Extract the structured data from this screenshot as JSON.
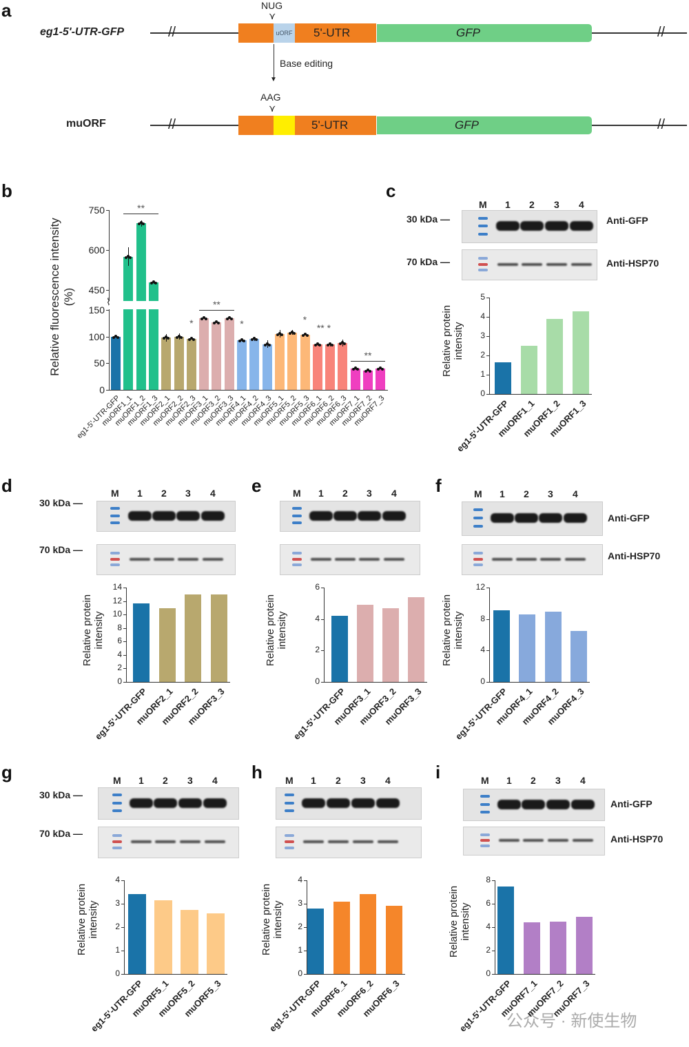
{
  "panels": {
    "a": "a",
    "b": "b",
    "c": "c",
    "d": "d",
    "e": "e",
    "f": "f",
    "g": "g",
    "h": "h",
    "i": "i"
  },
  "diagram": {
    "row1_label": "eg1-5'-UTR-GFP",
    "row2_label": "muORF",
    "codon1": "NUG",
    "codon2": "AAG",
    "uorf": "uORF",
    "utr": "5'-UTR",
    "gfp": "GFP",
    "arrow_label": "Base editing",
    "colors": {
      "utr": "#f07f1f",
      "uorf": "#b9d3ea",
      "mut": "#ffee00",
      "gfp": "#6fcf86"
    }
  },
  "blots": {
    "marker": "M",
    "lanes": [
      "1",
      "2",
      "3",
      "4"
    ],
    "kda30": "30 kDa",
    "kda70": "70 kDa",
    "anti_gfp": "Anti-GFP",
    "anti_hsp": "Anti-HSP70"
  },
  "watermark": "公众号 · 新使生物",
  "chart_data": [
    {
      "id": "b",
      "type": "bar",
      "ylabel": "Relative fluorescence intensity\n(%)",
      "ylim": [
        0,
        750
      ],
      "axis_break": [
        150,
        450
      ],
      "yticks": [
        0,
        50,
        100,
        150,
        450,
        600,
        750
      ],
      "categories": [
        "eg1-5'-UTR-GFP",
        "muORF1_1",
        "muORF1_2",
        "muORF1_3",
        "muORF2_1",
        "muORF2_2",
        "muORF2_3",
        "muORF3_1",
        "muORF3_2",
        "muORF3_3",
        "muORF4_1",
        "muORF4_2",
        "muORF4_3",
        "muORF5_1",
        "muORF5_2",
        "muORF5_3",
        "muORF6_1",
        "muORF6_2",
        "muORF6_3",
        "muORF7_1",
        "muORF7_2",
        "muORF7_3"
      ],
      "values": [
        100,
        575,
        700,
        478,
        98,
        100,
        96,
        135,
        127,
        135,
        93,
        96,
        86,
        105,
        108,
        103,
        85,
        85,
        88,
        40,
        36,
        40
      ],
      "errors": [
        1,
        35,
        12,
        5,
        7,
        6,
        1,
        2,
        2,
        2,
        3,
        4,
        7,
        7,
        5,
        1,
        2,
        3,
        6,
        2,
        1,
        1
      ],
      "colors": [
        "#1a73a8",
        "#21c08b",
        "#21c08b",
        "#21c08b",
        "#b8a86e",
        "#b8a86e",
        "#b8a86e",
        "#dcaeae",
        "#dcaeae",
        "#dcaeae",
        "#87b5ea",
        "#87b5ea",
        "#87b5ea",
        "#fdb878",
        "#fdb878",
        "#fdb878",
        "#f8847a",
        "#f8847a",
        "#f8847a",
        "#ef3fc0",
        "#ef3fc0",
        "#ef3fc0"
      ],
      "annotations": [
        {
          "text": "**",
          "from": 1,
          "to": 3,
          "line": true
        },
        {
          "text": "**",
          "from": 7,
          "to": 9,
          "line": true
        },
        {
          "text": "*",
          "from": 6,
          "to": 6
        },
        {
          "text": "*",
          "from": 10,
          "to": 10
        },
        {
          "text": "*",
          "from": 15,
          "to": 15
        },
        {
          "text": "** *",
          "from": 16,
          "to": 17
        },
        {
          "text": "**",
          "from": 19,
          "to": 21,
          "line": true
        }
      ]
    },
    {
      "id": "c",
      "type": "bar",
      "ylabel": "Relative protein\nintensity",
      "ylim": [
        0,
        5
      ],
      "yticks": [
        0,
        1,
        2,
        3,
        4,
        5
      ],
      "categories": [
        "eg1-5'-UTR-GFP",
        "muORF1_1",
        "muORF1_2",
        "muORF1_3"
      ],
      "values": [
        1.65,
        2.5,
        3.9,
        4.3
      ],
      "colors": [
        "#1a73a8",
        "#a8dca8",
        "#a8dca8",
        "#a8dca8"
      ]
    },
    {
      "id": "d",
      "type": "bar",
      "ylabel": "Relative protein\nintensity",
      "ylim": [
        0,
        14
      ],
      "yticks": [
        0,
        2,
        4,
        6,
        8,
        10,
        12,
        14
      ],
      "categories": [
        "eg1-5'-UTR-GFP",
        "muORF2_1",
        "muORF2_2",
        "muORF3_3"
      ],
      "values": [
        11.7,
        10.9,
        13,
        13
      ],
      "colors": [
        "#1a73a8",
        "#b8a86e",
        "#b8a86e",
        "#b8a86e"
      ]
    },
    {
      "id": "e",
      "type": "bar",
      "ylabel": "Relative protein\nintensity",
      "ylim": [
        0,
        6
      ],
      "yticks": [
        0,
        2,
        4,
        6
      ],
      "categories": [
        "eg1-5'-UTR-GFP",
        "muORF3_1",
        "muORF3_2",
        "muORF3_3"
      ],
      "values": [
        4.2,
        4.9,
        4.7,
        5.4
      ],
      "colors": [
        "#1a73a8",
        "#dcaeae",
        "#dcaeae",
        "#dcaeae"
      ]
    },
    {
      "id": "f",
      "type": "bar",
      "ylabel": "Relative protein\nintensity",
      "ylim": [
        0,
        12
      ],
      "yticks": [
        0,
        4,
        8,
        12
      ],
      "categories": [
        "eg1-5'-UTR-GFP",
        "muORF4_1",
        "muORF4_2",
        "muORF4_3"
      ],
      "values": [
        9.1,
        8.6,
        8.9,
        6.5
      ],
      "colors": [
        "#1a73a8",
        "#87a9dc",
        "#87a9dc",
        "#87a9dc"
      ]
    },
    {
      "id": "g",
      "type": "bar",
      "ylabel": "Relative protein\nintensity",
      "ylim": [
        0,
        4
      ],
      "yticks": [
        0,
        1,
        2,
        3,
        4
      ],
      "categories": [
        "eg1-5'-UTR-GFP",
        "muORF5_1",
        "muORF5_2",
        "muORF5_3"
      ],
      "values": [
        3.4,
        3.15,
        2.75,
        2.6
      ],
      "colors": [
        "#1a73a8",
        "#fdca88",
        "#fdca88",
        "#fdca88"
      ]
    },
    {
      "id": "h",
      "type": "bar",
      "ylabel": "Relative protein\nintensity",
      "ylim": [
        0,
        4
      ],
      "yticks": [
        0,
        1,
        2,
        3,
        4
      ],
      "categories": [
        "eg1-5'-UTR-GFP",
        "muORF6_1",
        "muORF6_2",
        "muORF6_3"
      ],
      "values": [
        2.8,
        3.1,
        3.4,
        2.9
      ],
      "colors": [
        "#1a73a8",
        "#f5862a",
        "#f5862a",
        "#f5862a"
      ]
    },
    {
      "id": "i",
      "type": "bar",
      "ylabel": "Relative protein\nintensity",
      "ylim": [
        0,
        8
      ],
      "yticks": [
        0,
        2,
        4,
        6,
        8
      ],
      "categories": [
        "eg1-5'-UTR-GFP",
        "muORF7_1",
        "muORF7_2",
        "muORF7_3"
      ],
      "values": [
        7.5,
        4.4,
        4.5,
        4.9
      ],
      "colors": [
        "#1a73a8",
        "#b27fc6",
        "#b27fc6",
        "#b27fc6"
      ]
    }
  ]
}
